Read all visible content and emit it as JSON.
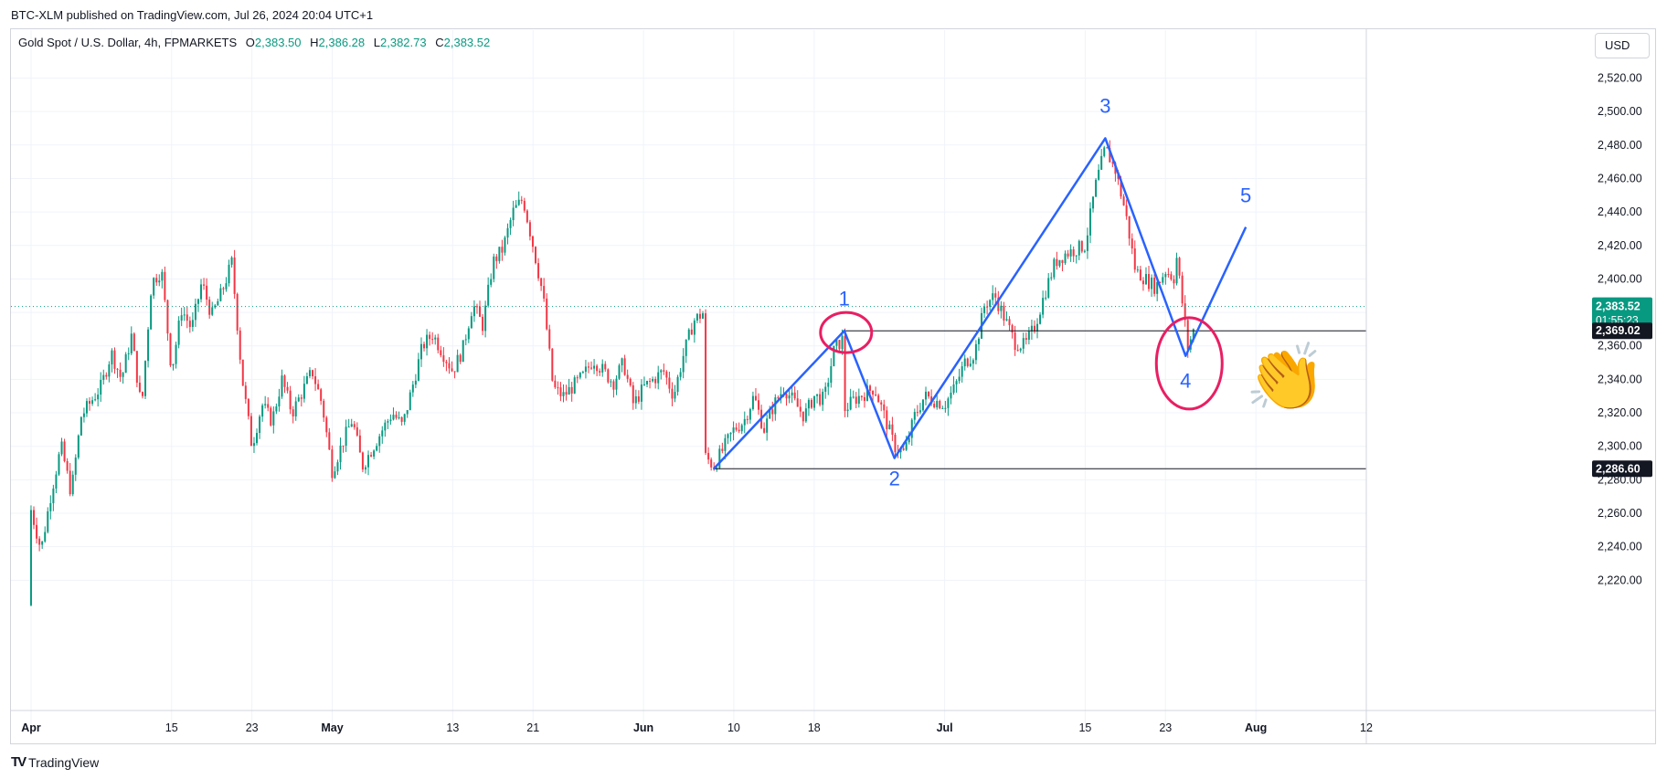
{
  "header": {
    "publish_line": "BTC-XLM published on TradingView.com, Jul 26, 2024 20:04 UTC+1"
  },
  "legend": {
    "symbol": "Gold Spot / U.S. Dollar, 4h, FPMARKETS",
    "o_label": "O",
    "o_value": "2,383.50",
    "h_label": "H",
    "h_value": "2,386.28",
    "l_label": "L",
    "l_value": "2,382.73",
    "c_label": "C",
    "c_value": "2,383.52"
  },
  "currency": "USD",
  "footer": {
    "brand": "TradingView",
    "logo_icon": "tradingview-logo-icon"
  },
  "colors": {
    "up": "#089981",
    "down": "#f23645",
    "annotation_blue": "#2962ff",
    "annotation_pink": "#e91e63",
    "grid": "#f0f3fa",
    "price_line": "#089981"
  },
  "chart_data": {
    "type": "candlestick",
    "timeframe": "4h",
    "ylim": [
      2200,
      2535
    ],
    "y_ticks": [
      2220,
      2240,
      2260,
      2280,
      2300,
      2320,
      2340,
      2360,
      2380,
      2400,
      2420,
      2440,
      2460,
      2480,
      2500,
      2520
    ],
    "y_tick_labels": [
      "2,220.00",
      "2,240.00",
      "2,260.00",
      "2,280.00",
      "2,300.00",
      "2,320.00",
      "2,340.00",
      "2,360.00",
      "2,380.00",
      "2,400.00",
      "2,420.00",
      "2,440.00",
      "2,460.00",
      "2,480.00",
      "2,500.00",
      "2,520.00"
    ],
    "xlim": [
      "2024-03-30",
      "2024-08-12"
    ],
    "x_ticks": [
      {
        "date": "2024-04-01",
        "label": "Apr"
      },
      {
        "date": "2024-04-15",
        "label": "15"
      },
      {
        "date": "2024-04-23",
        "label": "23"
      },
      {
        "date": "2024-05-01",
        "label": "May"
      },
      {
        "date": "2024-05-13",
        "label": "13"
      },
      {
        "date": "2024-05-21",
        "label": "21"
      },
      {
        "date": "2024-06-01",
        "label": "Jun"
      },
      {
        "date": "2024-06-10",
        "label": "10"
      },
      {
        "date": "2024-06-18",
        "label": "18"
      },
      {
        "date": "2024-07-01",
        "label": "Jul"
      },
      {
        "date": "2024-07-15",
        "label": "15"
      },
      {
        "date": "2024-07-23",
        "label": "23"
      },
      {
        "date": "2024-08-01",
        "label": "Aug"
      },
      {
        "date": "2024-08-12",
        "label": "12"
      }
    ],
    "price_path": [
      [
        "2024-04-01",
        2205
      ],
      [
        "2024-04-01",
        2262
      ],
      [
        "2024-04-02",
        2238
      ],
      [
        "2024-04-03",
        2272
      ],
      [
        "2024-04-04",
        2300
      ],
      [
        "2024-04-05",
        2272
      ],
      [
        "2024-04-06",
        2318
      ],
      [
        "2024-04-08",
        2336
      ],
      [
        "2024-04-09",
        2356
      ],
      [
        "2024-04-10",
        2340
      ],
      [
        "2024-04-11",
        2366
      ],
      [
        "2024-04-12",
        2322
      ],
      [
        "2024-04-13",
        2398
      ],
      [
        "2024-04-14",
        2405
      ],
      [
        "2024-04-15",
        2345
      ],
      [
        "2024-04-16",
        2382
      ],
      [
        "2024-04-17",
        2370
      ],
      [
        "2024-04-18",
        2398
      ],
      [
        "2024-04-19",
        2378
      ],
      [
        "2024-04-20",
        2392
      ],
      [
        "2024-04-21",
        2410
      ],
      [
        "2024-04-22",
        2342
      ],
      [
        "2024-04-23",
        2300
      ],
      [
        "2024-04-24",
        2325
      ],
      [
        "2024-04-25",
        2315
      ],
      [
        "2024-04-26",
        2340
      ],
      [
        "2024-04-27",
        2320
      ],
      [
        "2024-04-29",
        2345
      ],
      [
        "2024-04-30",
        2325
      ],
      [
        "2024-05-01",
        2285
      ],
      [
        "2024-05-02",
        2302
      ],
      [
        "2024-05-03",
        2316
      ],
      [
        "2024-05-04",
        2288
      ],
      [
        "2024-05-06",
        2310
      ],
      [
        "2024-05-07",
        2320
      ],
      [
        "2024-05-08",
        2312
      ],
      [
        "2024-05-09",
        2336
      ],
      [
        "2024-05-10",
        2360
      ],
      [
        "2024-05-11",
        2367
      ],
      [
        "2024-05-13",
        2345
      ],
      [
        "2024-05-14",
        2358
      ],
      [
        "2024-05-15",
        2385
      ],
      [
        "2024-05-16",
        2372
      ],
      [
        "2024-05-17",
        2410
      ],
      [
        "2024-05-18",
        2418
      ],
      [
        "2024-05-19",
        2440
      ],
      [
        "2024-05-20",
        2448
      ],
      [
        "2024-05-21",
        2420
      ],
      [
        "2024-05-22",
        2390
      ],
      [
        "2024-05-23",
        2335
      ],
      [
        "2024-05-24",
        2330
      ],
      [
        "2024-05-26",
        2342
      ],
      [
        "2024-05-27",
        2352
      ],
      [
        "2024-05-28",
        2345
      ],
      [
        "2024-05-29",
        2338
      ],
      [
        "2024-05-30",
        2350
      ],
      [
        "2024-05-31",
        2325
      ],
      [
        "2024-06-01",
        2335
      ],
      [
        "2024-06-03",
        2345
      ],
      [
        "2024-06-04",
        2330
      ],
      [
        "2024-06-05",
        2355
      ],
      [
        "2024-06-06",
        2375
      ],
      [
        "2024-06-07",
        2380
      ],
      [
        "2024-06-07",
        2295
      ],
      [
        "2024-06-08",
        2288
      ],
      [
        "2024-06-10",
        2310
      ],
      [
        "2024-06-11",
        2315
      ],
      [
        "2024-06-12",
        2330
      ],
      [
        "2024-06-13",
        2310
      ],
      [
        "2024-06-14",
        2325
      ],
      [
        "2024-06-15",
        2335
      ],
      [
        "2024-06-17",
        2318
      ],
      [
        "2024-06-18",
        2330
      ],
      [
        "2024-06-19",
        2328
      ],
      [
        "2024-06-20",
        2358
      ],
      [
        "2024-06-21",
        2365
      ],
      [
        "2024-06-21",
        2322
      ],
      [
        "2024-06-22",
        2328
      ],
      [
        "2024-06-24",
        2335
      ],
      [
        "2024-06-25",
        2318
      ],
      [
        "2024-06-26",
        2300
      ],
      [
        "2024-06-27",
        2296
      ],
      [
        "2024-06-28",
        2318
      ],
      [
        "2024-06-29",
        2330
      ],
      [
        "2024-07-01",
        2325
      ],
      [
        "2024-07-02",
        2335
      ],
      [
        "2024-07-03",
        2350
      ],
      [
        "2024-07-04",
        2356
      ],
      [
        "2024-07-05",
        2385
      ],
      [
        "2024-07-06",
        2390
      ],
      [
        "2024-07-08",
        2362
      ],
      [
        "2024-07-09",
        2360
      ],
      [
        "2024-07-10",
        2372
      ],
      [
        "2024-07-11",
        2392
      ],
      [
        "2024-07-12",
        2410
      ],
      [
        "2024-07-13",
        2415
      ],
      [
        "2024-07-15",
        2420
      ],
      [
        "2024-07-16",
        2455
      ],
      [
        "2024-07-17",
        2478
      ],
      [
        "2024-07-18",
        2465
      ],
      [
        "2024-07-19",
        2440
      ],
      [
        "2024-07-20",
        2405
      ],
      [
        "2024-07-22",
        2395
      ],
      [
        "2024-07-23",
        2405
      ],
      [
        "2024-07-24",
        2400
      ],
      [
        "2024-07-24",
        2418
      ],
      [
        "2024-07-25",
        2370
      ],
      [
        "2024-07-25",
        2355
      ],
      [
        "2024-07-26",
        2373
      ],
      [
        "2024-07-26",
        2383.52
      ]
    ],
    "last_price": {
      "value": 2383.52,
      "label": "2,383.52",
      "countdown": "01:55:23"
    },
    "horizontal_lines": [
      {
        "value": 2369.02,
        "label": "2,369.02",
        "from": "2024-06-21"
      },
      {
        "value": 2286.6,
        "label": "2,286.60",
        "from": "2024-06-08"
      }
    ],
    "wave_points": [
      {
        "label": "",
        "date": "2024-06-08",
        "value": 2286.6
      },
      {
        "label": "1",
        "date": "2024-06-21",
        "value": 2369
      },
      {
        "label": "2",
        "date": "2024-06-26",
        "value": 2293
      },
      {
        "label": "3",
        "date": "2024-07-17",
        "value": 2484
      },
      {
        "label": "4",
        "date": "2024-07-25",
        "value": 2354
      },
      {
        "label": "5",
        "date": "2024-07-31",
        "value": 2431
      }
    ],
    "annotations": [
      {
        "kind": "circle",
        "date": "2024-06-21",
        "value": 2368
      },
      {
        "kind": "circle",
        "date": "2024-07-25",
        "value": 2355
      },
      {
        "kind": "emoji",
        "name": "clapping-hands-icon",
        "date": "2024-08-04",
        "value": 2343
      }
    ]
  }
}
